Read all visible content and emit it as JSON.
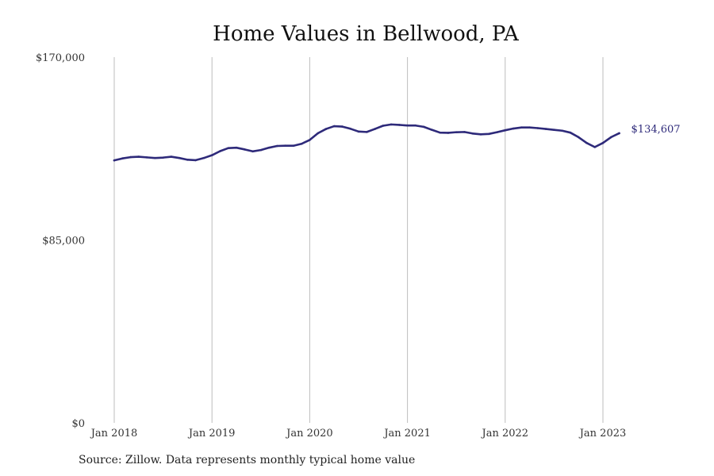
{
  "chart_data": {
    "type": "line",
    "title": "Home Values in Bellwood, PA",
    "source": "Source: Zillow. Data represents monthly typical home value",
    "ylim": [
      0,
      170000
    ],
    "y_ticks": [
      {
        "value": 0,
        "label": "$0"
      },
      {
        "value": 85000,
        "label": "$85,000"
      },
      {
        "value": 170000,
        "label": "$170,000"
      }
    ],
    "x_ticks": [
      {
        "value": "2018-01",
        "label": "Jan 2018"
      },
      {
        "value": "2019-01",
        "label": "Jan 2019"
      },
      {
        "value": "2020-01",
        "label": "Jan 2020"
      },
      {
        "value": "2021-01",
        "label": "Jan 2021"
      },
      {
        "value": "2022-01",
        "label": "Jan 2022"
      },
      {
        "value": "2023-01",
        "label": "Jan 2023"
      }
    ],
    "grid": "vertical",
    "line_color": "#2e2a7a",
    "end_label": "$134,607",
    "series": [
      {
        "x": [
          "2018-01",
          "2018-02",
          "2018-03",
          "2018-04",
          "2018-05",
          "2018-06",
          "2018-07",
          "2018-08",
          "2018-09",
          "2018-10",
          "2018-11",
          "2018-12",
          "2019-01",
          "2019-02",
          "2019-03",
          "2019-04",
          "2019-05",
          "2019-06",
          "2019-07",
          "2019-08",
          "2019-09",
          "2019-10",
          "2019-11",
          "2019-12",
          "2020-01",
          "2020-02",
          "2020-03",
          "2020-04",
          "2020-05",
          "2020-06",
          "2020-07",
          "2020-08",
          "2020-09",
          "2020-10",
          "2020-11",
          "2020-12",
          "2021-01",
          "2021-02",
          "2021-03",
          "2021-04",
          "2021-05",
          "2021-06",
          "2021-07",
          "2021-08",
          "2021-09",
          "2021-10",
          "2021-11",
          "2021-12",
          "2022-01",
          "2022-02",
          "2022-03",
          "2022-04",
          "2022-05",
          "2022-06",
          "2022-07",
          "2022-08",
          "2022-09",
          "2022-10",
          "2022-11",
          "2022-12",
          "2023-01",
          "2023-02",
          "2023-03"
        ],
        "values": [
          122000,
          122900,
          123500,
          123700,
          123400,
          123100,
          123300,
          123700,
          123100,
          122300,
          122100,
          123100,
          124400,
          126300,
          127700,
          127900,
          127100,
          126200,
          126800,
          127900,
          128700,
          128800,
          128800,
          129700,
          131500,
          134600,
          136600,
          137900,
          137700,
          136700,
          135400,
          135200,
          136600,
          138100,
          138700,
          138500,
          138200,
          138200,
          137600,
          136200,
          134900,
          134800,
          135100,
          135200,
          134500,
          134100,
          134300,
          135100,
          136000,
          136800,
          137300,
          137300,
          137000,
          136600,
          136200,
          135800,
          134900,
          132800,
          130100,
          128200,
          130100,
          132800,
          134607
        ]
      }
    ]
  }
}
